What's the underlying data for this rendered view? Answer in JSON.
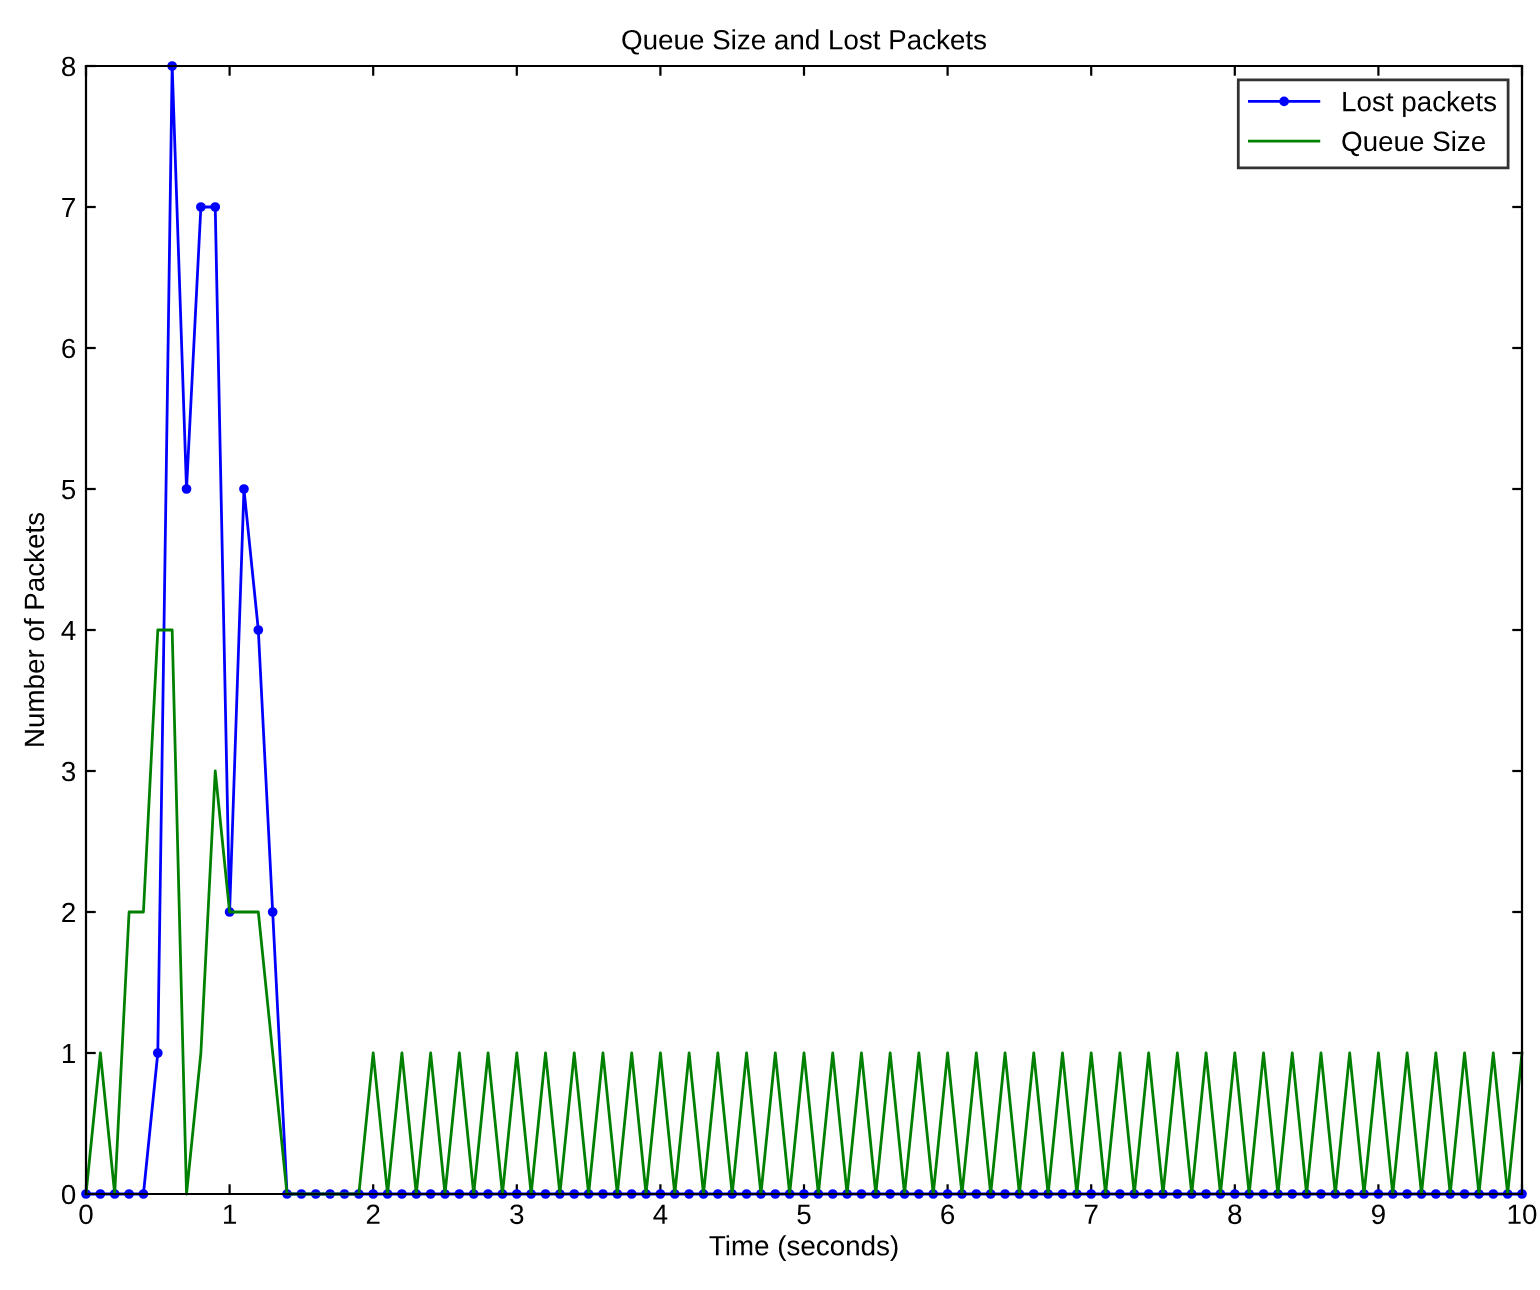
{
  "chart_data": {
    "type": "line",
    "title": "Queue Size and Lost Packets",
    "xlabel": "Time (seconds)",
    "ylabel": "Number of Packets",
    "x": [
      0,
      0.1,
      0.2,
      0.3,
      0.4,
      0.5,
      0.6,
      0.7,
      0.8,
      0.9,
      1,
      1.1,
      1.2,
      1.3,
      1.4,
      1.5,
      1.6,
      1.7,
      1.8,
      1.9,
      2,
      2.1,
      2.2,
      2.3,
      2.4,
      2.5,
      2.6,
      2.7,
      2.8,
      2.9,
      3,
      3.1,
      3.2,
      3.3,
      3.4,
      3.5,
      3.6,
      3.7,
      3.8,
      3.9,
      4,
      4.1,
      4.2,
      4.3,
      4.4,
      4.5,
      4.6,
      4.7,
      4.8,
      4.9,
      5,
      5.1,
      5.2,
      5.3,
      5.4,
      5.5,
      5.6,
      5.7,
      5.8,
      5.9,
      6,
      6.1,
      6.2,
      6.3,
      6.4,
      6.5,
      6.6,
      6.7,
      6.8,
      6.9,
      7,
      7.1,
      7.2,
      7.3,
      7.4,
      7.5,
      7.6,
      7.7,
      7.8,
      7.9,
      8,
      8.1,
      8.2,
      8.3,
      8.4,
      8.5,
      8.6,
      8.7,
      8.8,
      8.9,
      9,
      9.1,
      9.2,
      9.3,
      9.4,
      9.5,
      9.6,
      9.7,
      9.8,
      9.9,
      10
    ],
    "series": [
      {
        "name": "Lost packets",
        "color": "#0000ff",
        "marker": "circle",
        "values": [
          0,
          0,
          0,
          0,
          0,
          1,
          8,
          5,
          7,
          7,
          2,
          5,
          4,
          2,
          0,
          0,
          0,
          0,
          0,
          0,
          0,
          0,
          0,
          0,
          0,
          0,
          0,
          0,
          0,
          0,
          0,
          0,
          0,
          0,
          0,
          0,
          0,
          0,
          0,
          0,
          0,
          0,
          0,
          0,
          0,
          0,
          0,
          0,
          0,
          0,
          0,
          0,
          0,
          0,
          0,
          0,
          0,
          0,
          0,
          0,
          0,
          0,
          0,
          0,
          0,
          0,
          0,
          0,
          0,
          0,
          0,
          0,
          0,
          0,
          0,
          0,
          0,
          0,
          0,
          0,
          0,
          0,
          0,
          0,
          0,
          0,
          0,
          0,
          0,
          0,
          0,
          0,
          0,
          0,
          0,
          0,
          0,
          0,
          0,
          0,
          0
        ]
      },
      {
        "name": "Queue Size",
        "color": "#008000",
        "marker": "none",
        "values": [
          0,
          1,
          0,
          2,
          2,
          4,
          4,
          0,
          1,
          3,
          2,
          2,
          2,
          1,
          0,
          0,
          0,
          0,
          0,
          0,
          1,
          0,
          1,
          0,
          1,
          0,
          1,
          0,
          1,
          0,
          1,
          0,
          1,
          0,
          1,
          0,
          1,
          0,
          1,
          0,
          1,
          0,
          1,
          0,
          1,
          0,
          1,
          0,
          1,
          0,
          1,
          0,
          1,
          0,
          1,
          0,
          1,
          0,
          1,
          0,
          1,
          0,
          1,
          0,
          1,
          0,
          1,
          0,
          1,
          0,
          1,
          0,
          1,
          0,
          1,
          0,
          1,
          0,
          1,
          0,
          1,
          0,
          1,
          0,
          1,
          0,
          1,
          0,
          1,
          0,
          1,
          0,
          1,
          0,
          1,
          0,
          1,
          0,
          1,
          0,
          1
        ]
      }
    ],
    "xlim": [
      0,
      10
    ],
    "xticks": [
      0,
      1,
      2,
      3,
      4,
      5,
      6,
      7,
      8,
      9,
      10
    ],
    "ylim": [
      0,
      8
    ],
    "yticks": [
      0,
      1,
      2,
      3,
      4,
      5,
      6,
      7,
      8
    ],
    "grid": false,
    "legend": "top right",
    "line_style": "solid"
  }
}
